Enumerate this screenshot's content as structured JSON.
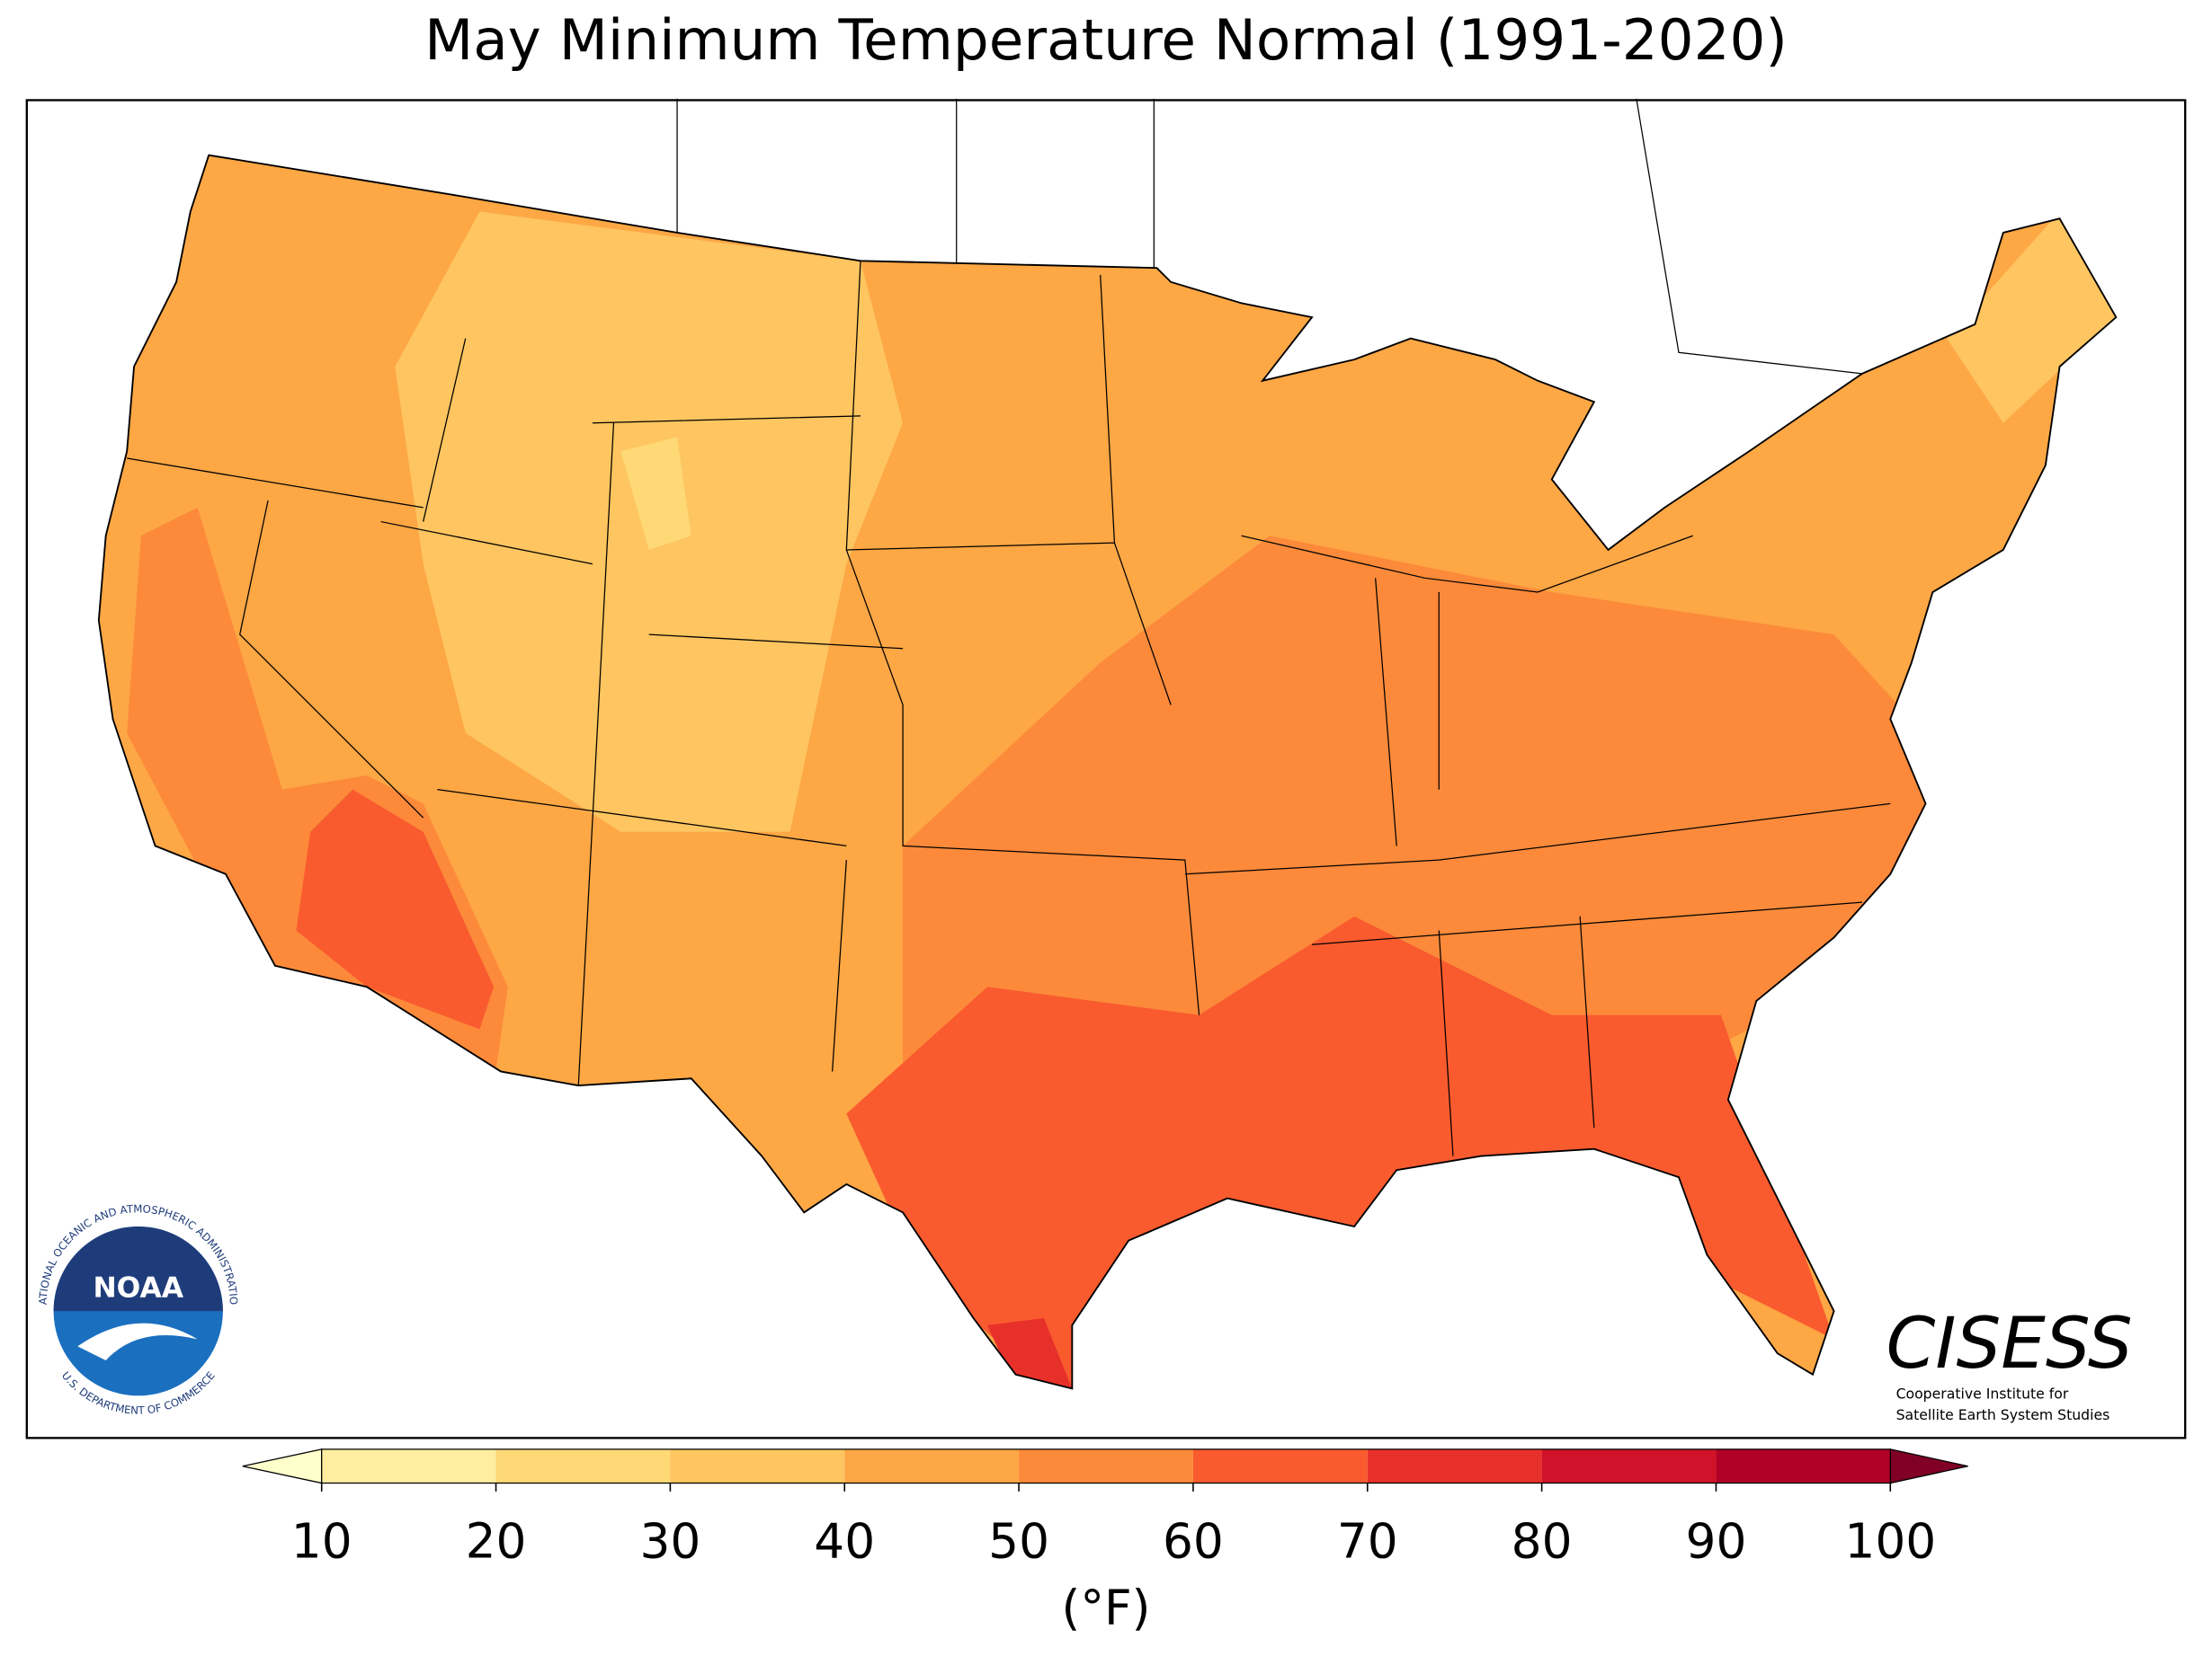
{
  "title": "May Minimum Temperature Normal (1991-2020)",
  "colorbar": {
    "ticks": [
      10,
      20,
      30,
      40,
      50,
      60,
      70,
      80,
      90,
      100
    ],
    "colors": [
      "#ffeda0",
      "#fed976",
      "#fec560",
      "#fda745",
      "#fc8a3a",
      "#f95b2e",
      "#e8302a",
      "#d0132a",
      "#b10026"
    ],
    "under_color": "#ffffcc",
    "over_color": "#800026",
    "label": "(°F)"
  },
  "logos": {
    "noaa": {
      "name": "NOAA",
      "ring_top": "NATIONAL OCEANIC AND ATMOSPHERIC ADMINISTRATION",
      "ring_bottom": "U.S. DEPARTMENT OF COMMERCE"
    },
    "cisess": {
      "name": "CISESS",
      "line1": "Cooperative Institute for",
      "line2": "Satellite Earth System Studies"
    }
  }
}
